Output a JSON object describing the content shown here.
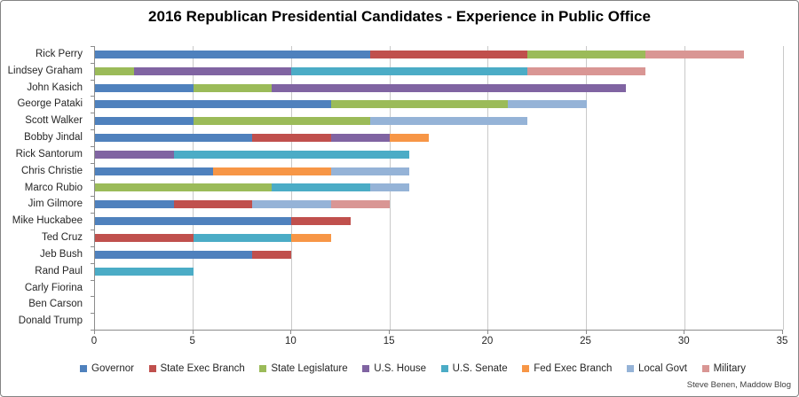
{
  "credit": "Steve Benen, Maddow Blog",
  "chart_data": {
    "type": "bar",
    "orientation": "horizontal",
    "stacked": true,
    "title": "2016 Republican Presidential Candidates - Experience in Public Office",
    "xlabel": "",
    "ylabel": "",
    "xlim": [
      0,
      35
    ],
    "x_ticks": [
      0,
      5,
      10,
      15,
      20,
      25,
      30,
      35
    ],
    "grid": true,
    "legend_position": "bottom",
    "categories": [
      "Rick Perry",
      "Lindsey Graham",
      "John Kasich",
      "George Pataki",
      "Scott Walker",
      "Bobby Jindal",
      "Rick Santorum",
      "Chris Christie",
      "Marco Rubio",
      "Jim Gilmore",
      "Mike Huckabee",
      "Ted Cruz",
      "Jeb Bush",
      "Rand Paul",
      "Carly Fiorina",
      "Ben Carson",
      "Donald Trump"
    ],
    "series": [
      {
        "name": "Governor",
        "color": "#4f81bd",
        "values": [
          14,
          0,
          5,
          12,
          5,
          8,
          0,
          6,
          0,
          4,
          10,
          0,
          8,
          0,
          0,
          0,
          0
        ]
      },
      {
        "name": "State Exec Branch",
        "color": "#c0504d",
        "values": [
          8,
          0,
          0,
          0,
          0,
          4,
          0,
          0,
          0,
          4,
          3,
          5,
          2,
          0,
          0,
          0,
          0
        ]
      },
      {
        "name": "State Legislature",
        "color": "#9bbb59",
        "values": [
          6,
          2,
          4,
          9,
          9,
          0,
          0,
          0,
          9,
          0,
          0,
          0,
          0,
          0,
          0,
          0,
          0
        ]
      },
      {
        "name": "U.S. House",
        "color": "#8064a2",
        "values": [
          0,
          8,
          18,
          0,
          0,
          3,
          4,
          0,
          0,
          0,
          0,
          0,
          0,
          0,
          0,
          0,
          0
        ]
      },
      {
        "name": "U.S. Senate",
        "color": "#4bacc6",
        "values": [
          0,
          12,
          0,
          0,
          0,
          0,
          12,
          0,
          5,
          0,
          0,
          5,
          0,
          5,
          0,
          0,
          0
        ]
      },
      {
        "name": "Fed Exec Branch",
        "color": "#f79646",
        "values": [
          0,
          0,
          0,
          0,
          0,
          2,
          0,
          6,
          0,
          0,
          0,
          2,
          0,
          0,
          0,
          0,
          0
        ]
      },
      {
        "name": "Local Govt",
        "color": "#95b3d7",
        "values": [
          0,
          0,
          0,
          4,
          8,
          0,
          0,
          4,
          2,
          4,
          0,
          0,
          0,
          0,
          0,
          0,
          0
        ]
      },
      {
        "name": "Military",
        "color": "#d99694",
        "values": [
          5,
          6,
          0,
          0,
          0,
          0,
          0,
          0,
          0,
          3,
          0,
          0,
          0,
          0,
          0,
          0,
          0
        ]
      }
    ]
  }
}
